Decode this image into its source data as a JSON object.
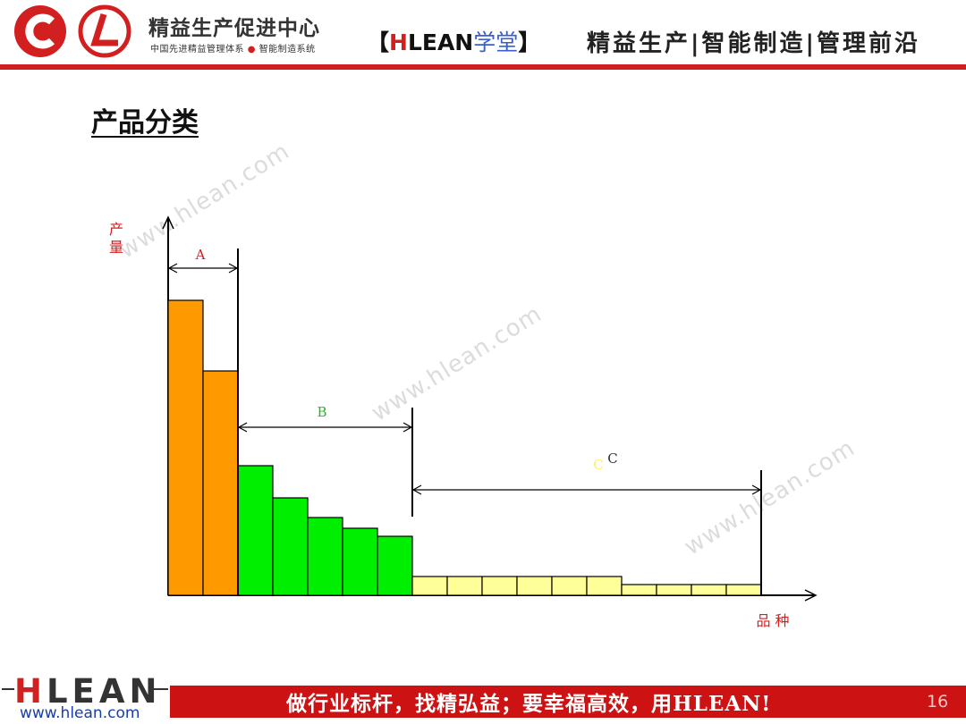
{
  "header": {
    "org_name": "精益生产促进中心",
    "org_sub_left": "中国先进精益管理体系",
    "org_sub_right": "智能制造系统",
    "school_open": "【",
    "school_h": "H",
    "school_rest": "LEAN",
    "school_cn": "学堂",
    "school_close": "】",
    "slogan": "精益生产|智能制造|管理前沿"
  },
  "page_title": "产品分类",
  "watermark_text": "www.hlean.com",
  "chart_data": {
    "type": "bar",
    "ylabel": "产\n量",
    "xlabel": "品  种",
    "groups": [
      {
        "label": "A",
        "color": "#ff9900",
        "values": [
          330,
          251
        ]
      },
      {
        "label": "B",
        "color": "#00ee00",
        "values": [
          145,
          109,
          87,
          75,
          66
        ]
      },
      {
        "label": "C",
        "color": "#ffff99",
        "values": [
          21,
          21,
          21,
          21,
          21,
          21,
          12,
          12,
          12,
          12
        ]
      }
    ],
    "c_annotation": [
      "C",
      "C"
    ],
    "colors": {
      "axis": "#000000",
      "label_red": "#d21f1f",
      "a_label": "#d21f1f",
      "b_label": "#22bb22",
      "c_label": "#333333",
      "c_label_faint": "#ffee66"
    }
  },
  "footer": {
    "brand_h": "H",
    "brand_rest": "LEAN",
    "url": "www.hlean.com",
    "slogan": "做行业标杆，找精弘益；要幸福高效，用HLEAN!",
    "page_number": "16"
  }
}
